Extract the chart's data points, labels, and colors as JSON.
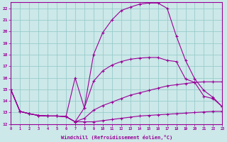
{
  "xlabel": "Windchill (Refroidissement éolien,°C)",
  "background_color": "#cce8e8",
  "grid_color": "#99cccc",
  "line_color": "#990099",
  "xmin": 0,
  "xmax": 23,
  "ymin": 12,
  "ymax": 22.5,
  "yticks": [
    12,
    13,
    14,
    15,
    16,
    17,
    18,
    19,
    20,
    21,
    22
  ],
  "line1_x": [
    0,
    1,
    2,
    3,
    4,
    5,
    6,
    7,
    8,
    9,
    10,
    11,
    12,
    13,
    14,
    15,
    16,
    17,
    18,
    19,
    20,
    21,
    22,
    23
  ],
  "line1_y": [
    15.0,
    13.1,
    12.9,
    12.75,
    12.7,
    12.7,
    12.65,
    12.2,
    12.2,
    12.2,
    12.3,
    12.4,
    12.5,
    12.6,
    12.7,
    12.75,
    12.8,
    12.85,
    12.9,
    12.95,
    13.0,
    13.05,
    13.1,
    13.1
  ],
  "line2_x": [
    0,
    1,
    2,
    3,
    4,
    5,
    6,
    7,
    8,
    9,
    10,
    11,
    12,
    13,
    14,
    15,
    16,
    17,
    18,
    19,
    20,
    21,
    22,
    23
  ],
  "line2_y": [
    15.0,
    13.1,
    12.9,
    12.75,
    12.7,
    12.7,
    12.65,
    12.2,
    12.5,
    13.2,
    13.6,
    13.9,
    14.2,
    14.5,
    14.7,
    14.9,
    15.1,
    15.3,
    15.4,
    15.5,
    15.6,
    15.65,
    15.65,
    15.65
  ],
  "line3_x": [
    0,
    1,
    2,
    3,
    4,
    5,
    6,
    7,
    8,
    9,
    10,
    11,
    12,
    13,
    14,
    15,
    16,
    17,
    18,
    19,
    20,
    21,
    22,
    23
  ],
  "line3_y": [
    15.0,
    13.1,
    12.9,
    12.75,
    12.7,
    12.7,
    12.65,
    12.2,
    13.4,
    15.7,
    16.6,
    17.1,
    17.4,
    17.6,
    17.7,
    17.75,
    17.75,
    17.5,
    17.4,
    15.9,
    15.6,
    14.4,
    14.2,
    13.5
  ],
  "line4_x": [
    0,
    1,
    2,
    3,
    4,
    5,
    6,
    7,
    8,
    9,
    10,
    11,
    12,
    13,
    14,
    15,
    16,
    17,
    18,
    19,
    20,
    21,
    22,
    23
  ],
  "line4_y": [
    15.0,
    13.1,
    12.9,
    12.75,
    12.7,
    12.7,
    12.65,
    16.0,
    13.4,
    18.0,
    19.9,
    21.0,
    21.8,
    22.1,
    22.35,
    22.45,
    22.45,
    22.0,
    19.6,
    17.5,
    15.9,
    14.9,
    14.3,
    13.5
  ]
}
